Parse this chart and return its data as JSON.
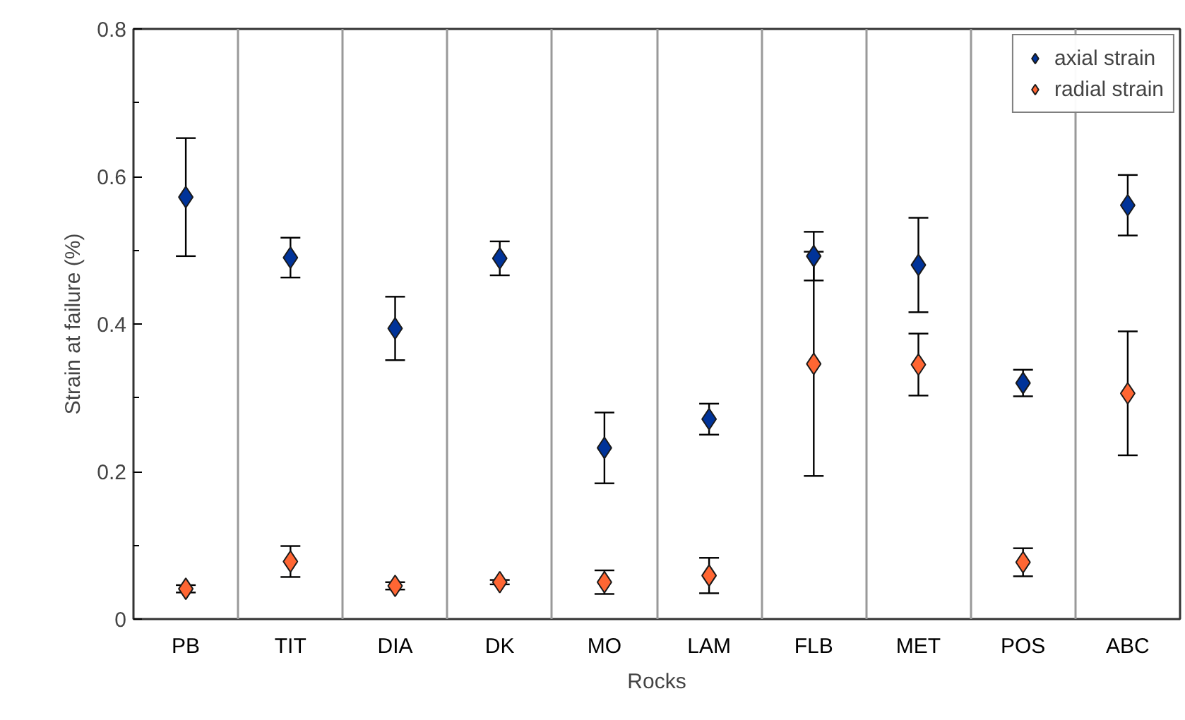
{
  "chart_data": {
    "type": "scatter",
    "xlabel": "Rocks",
    "ylabel": "Strain at failure (%)",
    "categories": [
      "PB",
      "TIT",
      "DIA",
      "DK",
      "MO",
      "LAM",
      "FLB",
      "MET",
      "POS",
      "ABC"
    ],
    "series": [
      {
        "name": "axial strain",
        "color": "#003399",
        "values": [
          0.572,
          0.49,
          0.394,
          0.489,
          0.232,
          0.271,
          0.492,
          0.48,
          0.32,
          0.561
        ],
        "errors": [
          0.08,
          0.027,
          0.043,
          0.023,
          0.048,
          0.021,
          0.033,
          0.064,
          0.018,
          0.041
        ]
      },
      {
        "name": "radial strain",
        "color": "#ff6633",
        "values": [
          0.041,
          0.078,
          0.045,
          0.05,
          0.05,
          0.059,
          0.346,
          0.345,
          0.077,
          0.306
        ],
        "errors": [
          0.005,
          0.021,
          0.005,
          0.003,
          0.016,
          0.024,
          0.152,
          0.042,
          0.019,
          0.084
        ]
      }
    ],
    "ylim": [
      0,
      0.8
    ],
    "yticks": [
      0,
      {
        "value": 0.1,
        "label": null
      },
      0.2,
      {
        "value": 0.3,
        "label": null
      },
      0.4,
      {
        "value": 0.5,
        "label": null
      },
      0.6,
      {
        "value": 0.7,
        "label": null
      },
      0.8
    ],
    "grid": "x",
    "legend": "top right",
    "marker": "diamond"
  }
}
